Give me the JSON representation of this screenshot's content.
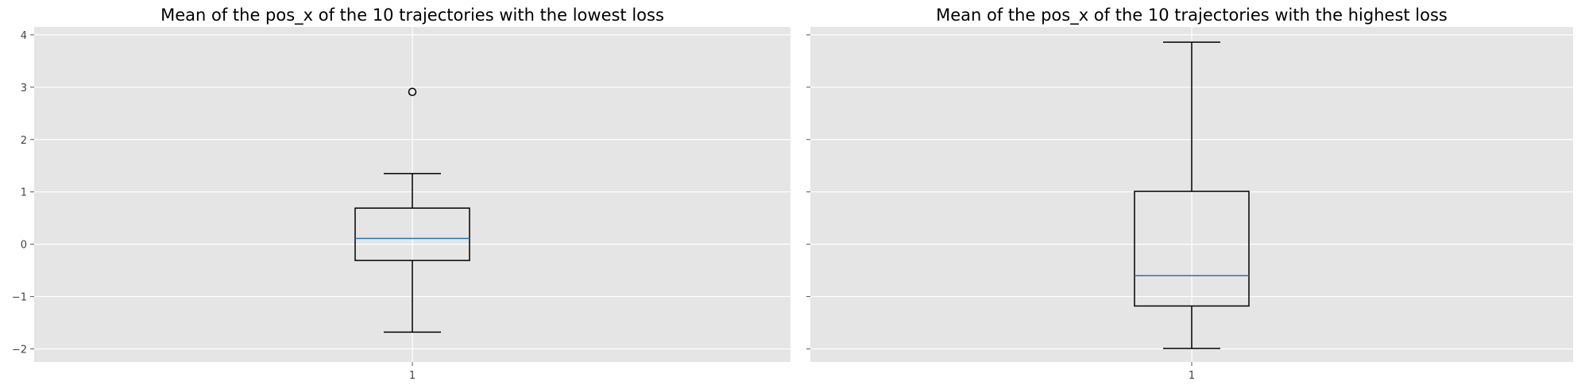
{
  "chart_data": [
    {
      "type": "box",
      "title": "Mean of the pos_x of the 10 trajectories with the lowest loss",
      "xlabel": "",
      "ylabel": "",
      "categories": [
        "1"
      ],
      "ylim": [
        -2.25,
        4.15
      ],
      "yticks": [
        "−2",
        "−1",
        "0",
        "1",
        "2",
        "3",
        "4"
      ],
      "yticks_values": [
        -2,
        -1,
        0,
        1,
        2,
        3,
        4
      ],
      "show_ytick_labels": true,
      "grid": true,
      "box": {
        "whisker_low": -1.68,
        "q1": -0.31,
        "median": 0.11,
        "q3": 0.69,
        "whisker_high": 1.35,
        "outliers": [
          2.91
        ]
      }
    },
    {
      "type": "box",
      "title": "Mean of the pos_x of the 10 trajectories with the highest loss",
      "xlabel": "",
      "ylabel": "",
      "categories": [
        "1"
      ],
      "ylim": [
        -2.25,
        4.15
      ],
      "yticks": [
        "−2",
        "−1",
        "0",
        "1",
        "2",
        "3",
        "4"
      ],
      "yticks_values": [
        -2,
        -1,
        0,
        1,
        2,
        3,
        4
      ],
      "show_ytick_labels": false,
      "grid": true,
      "box": {
        "whisker_low": -1.99,
        "q1": -1.18,
        "median": -0.6,
        "q3": 1.01,
        "whisker_high": 3.86,
        "outliers": []
      }
    }
  ],
  "colors": {
    "background": "#e5e5e5",
    "grid": "#ffffff",
    "box": "#000000",
    "median": "#1f77b4",
    "tick_label": "#444444"
  }
}
